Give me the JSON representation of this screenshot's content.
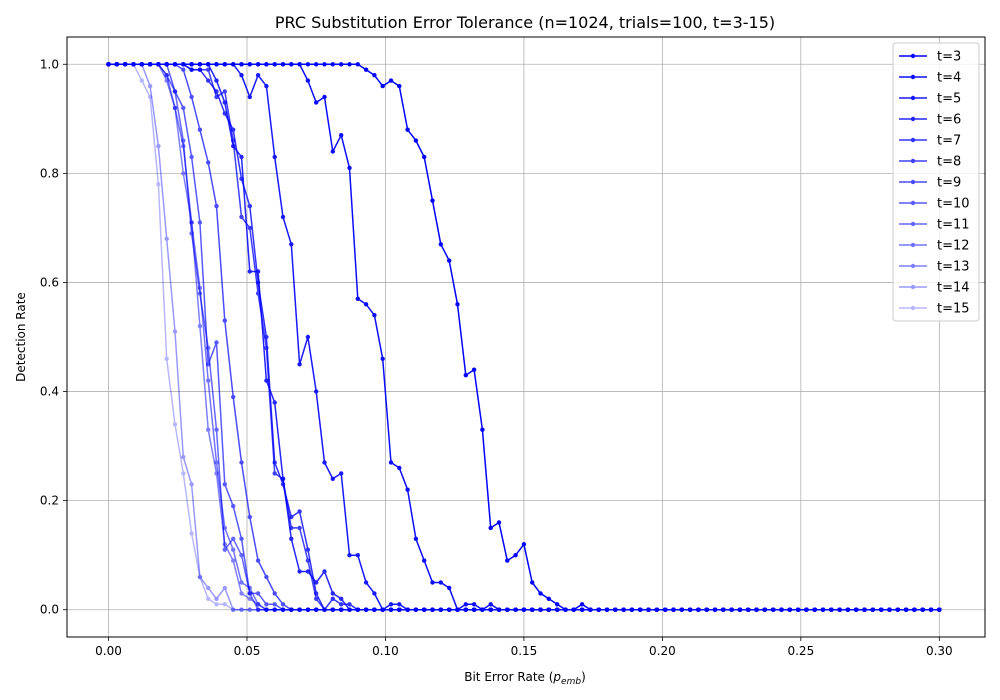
{
  "chart_data": {
    "type": "line",
    "title": "PRC Substitution Error Tolerance (n=1024, trials=100, t=3-15)",
    "xlabel_main": "Bit Error Rate (",
    "xlabel_sub_p": "p",
    "xlabel_sub_sub": "emb",
    "xlabel_close": ")",
    "ylabel": "Detection Rate",
    "xlim": [
      -0.015,
      0.3165
    ],
    "ylim": [
      -0.05,
      1.05
    ],
    "xticks": [
      0.0,
      0.05,
      0.1,
      0.15,
      0.2,
      0.25,
      0.3
    ],
    "xtick_labels": [
      "0.00",
      "0.05",
      "0.10",
      "0.15",
      "0.20",
      "0.25",
      "0.30"
    ],
    "yticks": [
      0.0,
      0.2,
      0.4,
      0.6,
      0.8,
      1.0
    ],
    "ytick_labels": [
      "0.0",
      "0.2",
      "0.4",
      "0.6",
      "0.8",
      "1.0"
    ],
    "grid": true,
    "legend_position": "top-right",
    "line_color": "#0000ff",
    "series": [
      {
        "name": "t=3",
        "alpha": 1.0,
        "transition": [
          [
            0.093,
            0.99
          ],
          [
            0.096,
            0.98
          ],
          [
            0.099,
            0.96
          ],
          [
            0.102,
            0.97
          ],
          [
            0.105,
            0.96
          ],
          [
            0.108,
            0.88
          ],
          [
            0.111,
            0.86
          ],
          [
            0.114,
            0.83
          ],
          [
            0.117,
            0.75
          ],
          [
            0.12,
            0.67
          ],
          [
            0.123,
            0.64
          ],
          [
            0.126,
            0.56
          ],
          [
            0.129,
            0.43
          ],
          [
            0.132,
            0.44
          ],
          [
            0.135,
            0.33
          ],
          [
            0.138,
            0.15
          ],
          [
            0.141,
            0.16
          ],
          [
            0.144,
            0.09
          ],
          [
            0.147,
            0.1
          ],
          [
            0.15,
            0.12
          ],
          [
            0.153,
            0.05
          ],
          [
            0.156,
            0.03
          ],
          [
            0.159,
            0.02
          ],
          [
            0.162,
            0.01
          ],
          [
            0.165,
            0.0
          ],
          [
            0.168,
            0.0
          ],
          [
            0.171,
            0.01
          ],
          [
            0.174,
            0.0
          ]
        ]
      },
      {
        "name": "t=4",
        "alpha": 0.95,
        "transition": [
          [
            0.072,
            0.97
          ],
          [
            0.075,
            0.93
          ],
          [
            0.078,
            0.94
          ],
          [
            0.081,
            0.84
          ],
          [
            0.084,
            0.87
          ],
          [
            0.087,
            0.81
          ],
          [
            0.09,
            0.57
          ],
          [
            0.093,
            0.56
          ],
          [
            0.096,
            0.54
          ],
          [
            0.099,
            0.46
          ],
          [
            0.102,
            0.27
          ],
          [
            0.105,
            0.26
          ],
          [
            0.108,
            0.22
          ],
          [
            0.111,
            0.13
          ],
          [
            0.114,
            0.09
          ],
          [
            0.117,
            0.05
          ],
          [
            0.12,
            0.05
          ],
          [
            0.123,
            0.04
          ],
          [
            0.126,
            0.0
          ],
          [
            0.129,
            0.01
          ],
          [
            0.132,
            0.01
          ],
          [
            0.135,
            0.0
          ],
          [
            0.138,
            0.01
          ],
          [
            0.141,
            0.0
          ]
        ]
      },
      {
        "name": "t=5",
        "alpha": 0.9,
        "transition": [
          [
            0.048,
            0.98
          ],
          [
            0.051,
            0.94
          ],
          [
            0.054,
            0.98
          ],
          [
            0.057,
            0.96
          ],
          [
            0.06,
            0.83
          ],
          [
            0.063,
            0.72
          ],
          [
            0.066,
            0.67
          ],
          [
            0.069,
            0.45
          ],
          [
            0.072,
            0.5
          ],
          [
            0.075,
            0.4
          ],
          [
            0.078,
            0.27
          ],
          [
            0.081,
            0.24
          ],
          [
            0.084,
            0.25
          ],
          [
            0.087,
            0.1
          ],
          [
            0.09,
            0.1
          ],
          [
            0.093,
            0.05
          ],
          [
            0.096,
            0.03
          ],
          [
            0.099,
            0.0
          ],
          [
            0.102,
            0.01
          ],
          [
            0.105,
            0.01
          ],
          [
            0.108,
            0.0
          ]
        ]
      },
      {
        "name": "t=6",
        "alpha": 0.85,
        "transition": [
          [
            0.039,
            0.97
          ],
          [
            0.042,
            0.93
          ],
          [
            0.045,
            0.85
          ],
          [
            0.048,
            0.83
          ],
          [
            0.051,
            0.62
          ],
          [
            0.054,
            0.62
          ],
          [
            0.057,
            0.42
          ],
          [
            0.06,
            0.38
          ],
          [
            0.063,
            0.24
          ],
          [
            0.066,
            0.13
          ],
          [
            0.069,
            0.07
          ],
          [
            0.072,
            0.07
          ],
          [
            0.075,
            0.05
          ],
          [
            0.078,
            0.07
          ],
          [
            0.081,
            0.03
          ],
          [
            0.084,
            0.02
          ],
          [
            0.087,
            0.0
          ],
          [
            0.09,
            0.0
          ]
        ]
      },
      {
        "name": "t=7",
        "alpha": 0.8,
        "transition": [
          [
            0.03,
            0.99
          ],
          [
            0.033,
            0.99
          ],
          [
            0.036,
            0.97
          ],
          [
            0.039,
            0.95
          ],
          [
            0.042,
            0.91
          ],
          [
            0.045,
            0.88
          ],
          [
            0.048,
            0.79
          ],
          [
            0.051,
            0.74
          ],
          [
            0.054,
            0.6
          ],
          [
            0.057,
            0.5
          ],
          [
            0.06,
            0.27
          ],
          [
            0.063,
            0.23
          ],
          [
            0.066,
            0.17
          ],
          [
            0.069,
            0.18
          ],
          [
            0.072,
            0.11
          ],
          [
            0.075,
            0.03
          ],
          [
            0.078,
            0.0
          ],
          [
            0.081,
            0.02
          ],
          [
            0.084,
            0.01
          ],
          [
            0.087,
            0.01
          ],
          [
            0.09,
            0.0
          ]
        ]
      },
      {
        "name": "t=8",
        "alpha": 0.75,
        "transition": [
          [
            0.03,
            0.99
          ],
          [
            0.033,
            0.99
          ],
          [
            0.036,
            0.99
          ],
          [
            0.039,
            0.94
          ],
          [
            0.042,
            0.95
          ],
          [
            0.045,
            0.86
          ],
          [
            0.048,
            0.72
          ],
          [
            0.051,
            0.7
          ],
          [
            0.054,
            0.58
          ],
          [
            0.057,
            0.48
          ],
          [
            0.06,
            0.25
          ],
          [
            0.063,
            0.24
          ],
          [
            0.066,
            0.15
          ],
          [
            0.069,
            0.15
          ],
          [
            0.072,
            0.09
          ],
          [
            0.075,
            0.02
          ],
          [
            0.078,
            0.0
          ]
        ]
      },
      {
        "name": "t=9",
        "alpha": 0.7,
        "transition": [
          [
            0.027,
            0.99
          ],
          [
            0.03,
            0.94
          ],
          [
            0.033,
            0.88
          ],
          [
            0.036,
            0.82
          ],
          [
            0.039,
            0.74
          ],
          [
            0.042,
            0.53
          ],
          [
            0.045,
            0.39
          ],
          [
            0.048,
            0.27
          ],
          [
            0.051,
            0.17
          ],
          [
            0.054,
            0.09
          ],
          [
            0.057,
            0.06
          ],
          [
            0.06,
            0.03
          ],
          [
            0.063,
            0.01
          ],
          [
            0.066,
            0.0
          ]
        ]
      },
      {
        "name": "t=10",
        "alpha": 0.65,
        "transition": [
          [
            0.024,
            0.95
          ],
          [
            0.027,
            0.92
          ],
          [
            0.03,
            0.83
          ],
          [
            0.033,
            0.71
          ],
          [
            0.036,
            0.45
          ],
          [
            0.039,
            0.49
          ],
          [
            0.042,
            0.23
          ],
          [
            0.045,
            0.19
          ],
          [
            0.048,
            0.13
          ],
          [
            0.051,
            0.03
          ],
          [
            0.054,
            0.03
          ],
          [
            0.057,
            0.01
          ],
          [
            0.06,
            0.01
          ],
          [
            0.063,
            0.0
          ]
        ]
      },
      {
        "name": "t=11",
        "alpha": 0.6,
        "transition": [
          [
            0.021,
            0.98
          ],
          [
            0.024,
            0.95
          ],
          [
            0.027,
            0.86
          ],
          [
            0.03,
            0.69
          ],
          [
            0.033,
            0.58
          ],
          [
            0.036,
            0.48
          ],
          [
            0.039,
            0.33
          ],
          [
            0.042,
            0.11
          ],
          [
            0.045,
            0.13
          ],
          [
            0.048,
            0.1
          ],
          [
            0.051,
            0.03
          ],
          [
            0.054,
            0.0
          ],
          [
            0.057,
            0.0
          ]
        ]
      },
      {
        "name": "t=12",
        "alpha": 0.55,
        "transition": [
          [
            0.021,
            0.98
          ],
          [
            0.024,
            0.92
          ],
          [
            0.027,
            0.85
          ],
          [
            0.03,
            0.71
          ],
          [
            0.033,
            0.59
          ],
          [
            0.036,
            0.42
          ],
          [
            0.039,
            0.27
          ],
          [
            0.042,
            0.15
          ],
          [
            0.045,
            0.11
          ],
          [
            0.048,
            0.05
          ],
          [
            0.051,
            0.04
          ],
          [
            0.054,
            0.01
          ],
          [
            0.057,
            0.0
          ]
        ]
      },
      {
        "name": "t=13",
        "alpha": 0.5,
        "transition": [
          [
            0.021,
            0.97
          ],
          [
            0.024,
            0.92
          ],
          [
            0.027,
            0.8
          ],
          [
            0.03,
            0.71
          ],
          [
            0.033,
            0.52
          ],
          [
            0.036,
            0.33
          ],
          [
            0.039,
            0.25
          ],
          [
            0.042,
            0.12
          ],
          [
            0.045,
            0.09
          ],
          [
            0.048,
            0.03
          ],
          [
            0.051,
            0.02
          ],
          [
            0.054,
            0.01
          ],
          [
            0.057,
            0.0
          ]
        ]
      },
      {
        "name": "t=14",
        "alpha": 0.4,
        "transition": [
          [
            0.015,
            0.96
          ],
          [
            0.018,
            0.85
          ],
          [
            0.021,
            0.68
          ],
          [
            0.024,
            0.51
          ],
          [
            0.027,
            0.28
          ],
          [
            0.03,
            0.23
          ],
          [
            0.033,
            0.06
          ],
          [
            0.036,
            0.04
          ],
          [
            0.039,
            0.02
          ],
          [
            0.042,
            0.04
          ],
          [
            0.045,
            0.0
          ],
          [
            0.048,
            0.0
          ]
        ]
      },
      {
        "name": "t=15",
        "alpha": 0.28,
        "transition": [
          [
            0.012,
            0.97
          ],
          [
            0.015,
            0.94
          ],
          [
            0.018,
            0.78
          ],
          [
            0.021,
            0.46
          ],
          [
            0.024,
            0.34
          ],
          [
            0.027,
            0.25
          ],
          [
            0.03,
            0.14
          ],
          [
            0.033,
            0.06
          ],
          [
            0.036,
            0.02
          ],
          [
            0.039,
            0.01
          ],
          [
            0.042,
            0.01
          ],
          [
            0.045,
            0.0
          ],
          [
            0.048,
            0.0
          ]
        ]
      }
    ]
  }
}
